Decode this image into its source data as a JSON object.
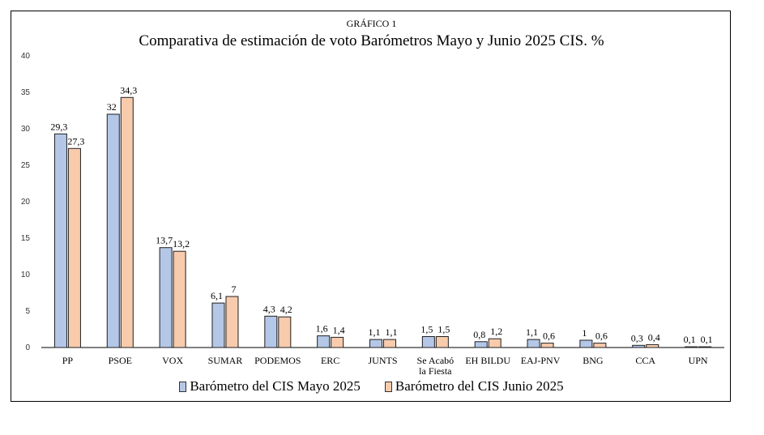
{
  "figure_label": "GRÁFICO 1",
  "chart_data": {
    "type": "bar",
    "title": "Comparativa de estimación de voto Barómetros Mayo y Junio 2025 CIS. %",
    "categories": [
      "PP",
      "PSOE",
      "VOX",
      "SUMAR",
      "PODEMOS",
      "ERC",
      "JUNTS",
      "Se Acabó la Fiesta",
      "EH BILDU",
      "EAJ-PNV",
      "BNG",
      "CCA",
      "UPN"
    ],
    "series": [
      {
        "name": "Barómetro del CIS Mayo 2025",
        "color": "#b4c7e7",
        "values": [
          29.3,
          32,
          13.7,
          6.1,
          4.3,
          1.6,
          1.1,
          1.5,
          0.8,
          1.1,
          1,
          0.3,
          0.1
        ],
        "labels": [
          "29,3",
          "32",
          "13,7",
          "6,1",
          "4,3",
          "1,6",
          "1,1",
          "1,5",
          "0,8",
          "1,1",
          "1",
          "0,3",
          "0,1"
        ]
      },
      {
        "name": "Barómetro del CIS Junio 2025",
        "color": "#f8cbad",
        "values": [
          27.3,
          34.3,
          13.2,
          7,
          4.2,
          1.4,
          1.1,
          1.5,
          1.2,
          0.6,
          0.6,
          0.4,
          0.1
        ],
        "labels": [
          "27,3",
          "34,3",
          "13,2",
          "7",
          "4,2",
          "1,4",
          "1,1",
          "1,5",
          "1,2",
          "0,6",
          "0,6",
          "0,4",
          "0,1"
        ]
      }
    ],
    "ylim": [
      0,
      40
    ],
    "yticks": [
      0,
      5,
      10,
      15,
      20,
      25,
      30,
      35,
      40
    ],
    "grid": false,
    "legend_position": "bottom"
  }
}
